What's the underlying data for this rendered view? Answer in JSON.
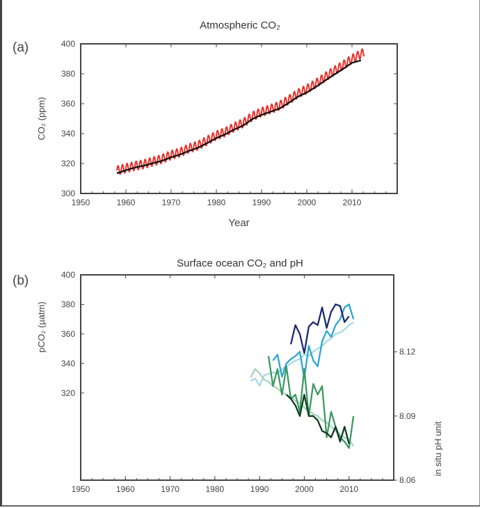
{
  "chart_data": [
    {
      "type": "line",
      "panel_label": "(a)",
      "title": "Atmospheric CO₂",
      "xlabel": "Year",
      "ylabel": "CO₂ (ppm)",
      "xlim": [
        1950,
        2020
      ],
      "ylim": [
        300,
        400
      ],
      "xticks": [
        1950,
        1960,
        1970,
        1980,
        1990,
        2000,
        2010
      ],
      "yticks": [
        300,
        320,
        340,
        360,
        380,
        400
      ],
      "grid": false,
      "series": [
        {
          "color": "#e8302a",
          "seasonal_amplitude": 3,
          "x": [
            1958,
            1960,
            1962,
            1964,
            1966,
            1968,
            1970,
            1972,
            1974,
            1976,
            1978,
            1980,
            1982,
            1984,
            1986,
            1988,
            1990,
            1992,
            1994,
            1996,
            1998,
            2000,
            2002,
            2004,
            2006,
            2008,
            2010,
            2012.8
          ],
          "y": [
            315.3,
            316.9,
            318.4,
            319.6,
            321.4,
            323.1,
            325.7,
            327.5,
            330.2,
            332.1,
            335.4,
            338.8,
            341.1,
            344.4,
            347.2,
            351.6,
            354.4,
            356.4,
            358.8,
            362.6,
            366.7,
            369.7,
            373.5,
            377.7,
            381.9,
            385.6,
            389.9,
            394.5
          ]
        },
        {
          "color": "#111111",
          "x": [
            1958,
            1960,
            1962,
            1964,
            1966,
            1968,
            1970,
            1972,
            1974,
            1976,
            1978,
            1980,
            1982,
            1984,
            1986,
            1988,
            1990,
            1992,
            1994,
            1996,
            1998,
            2000,
            2002,
            2004,
            2006,
            2008,
            2010,
            2012
          ],
          "y": [
            313.5,
            315.5,
            317.3,
            318.6,
            320.3,
            321.8,
            324.2,
            326.0,
            328.5,
            330.6,
            333.7,
            337.0,
            339.6,
            342.8,
            345.5,
            349.8,
            352.5,
            354.6,
            356.8,
            360.5,
            364.6,
            367.5,
            371.2,
            375.3,
            379.3,
            383.2,
            387.3,
            389.0
          ]
        }
      ]
    },
    {
      "type": "line",
      "panel_label": "(b)",
      "title": "Surface ocean CO₂ and pH",
      "ylabel": "pCO₂ (µatm)",
      "ylabel_right": "in situ pH unit",
      "xlim": [
        1950,
        2020
      ],
      "ylim": [
        261,
        400
      ],
      "ylim_right": [
        8.06,
        8.156
      ],
      "xticks": [
        1950,
        1960,
        1970,
        1980,
        1990,
        2000,
        2010
      ],
      "yticks": [
        320,
        340,
        360,
        380,
        400
      ],
      "yticks_right": [
        "8.06",
        "8.09",
        "8.12"
      ],
      "grid": false,
      "series": [
        {
          "axis": "left",
          "color": "#a8d8e6",
          "x": [
            1988,
            1989,
            1990,
            1991,
            1992,
            1993,
            1994,
            1995,
            1996,
            1997,
            1998,
            1999,
            2000,
            2001,
            2002,
            2003,
            2004,
            2005,
            2006,
            2007,
            2008,
            2009,
            2010,
            2011
          ],
          "y": [
            328,
            330,
            325,
            332,
            333,
            334,
            333,
            336,
            338,
            340,
            342,
            343,
            346,
            345,
            348,
            350,
            352,
            355,
            357,
            360,
            361,
            363,
            366,
            368
          ]
        },
        {
          "axis": "left",
          "color": "#2ba6cf",
          "x": [
            1993,
            1994,
            1995,
            1996,
            1997,
            1998,
            1999,
            2000,
            2001,
            2002,
            2003,
            2004,
            2005,
            2006,
            2007,
            2008,
            2009,
            2010,
            2011
          ],
          "y": [
            342,
            346,
            331,
            340,
            343,
            345,
            348,
            330,
            352,
            342,
            338,
            355,
            362,
            358,
            366,
            370,
            378,
            380,
            370
          ]
        },
        {
          "axis": "left",
          "color": "#1d2a6e",
          "x": [
            1997,
            1998,
            1999,
            2000,
            2001,
            2002,
            2003,
            2004,
            2005,
            2006,
            2007,
            2008,
            2009,
            2010
          ],
          "y": [
            353,
            366,
            360,
            347,
            365,
            368,
            366,
            378,
            364,
            375,
            380,
            379,
            368,
            372
          ]
        },
        {
          "axis": "right",
          "color": "#a6d6b8",
          "x": [
            1988,
            1989,
            1990,
            1991,
            1992,
            1993,
            1994,
            1995,
            1996,
            1997,
            1998,
            1999,
            2000,
            2001,
            2002,
            2003,
            2004,
            2005,
            2006,
            2007,
            2008,
            2009,
            2010,
            2011
          ],
          "y": [
            8.108,
            8.112,
            8.11,
            8.107,
            8.106,
            8.104,
            8.103,
            8.101,
            8.1,
            8.099,
            8.097,
            8.096,
            8.094,
            8.092,
            8.091,
            8.09,
            8.088,
            8.087,
            8.085,
            8.083,
            8.081,
            8.08,
            8.079,
            8.076
          ]
        },
        {
          "axis": "right",
          "color": "#3a9a5e",
          "x": [
            1992,
            1993,
            1994,
            1995,
            1996,
            1997,
            1998,
            1999,
            2000,
            2001,
            2002,
            2003,
            2004,
            2005,
            2006,
            2007,
            2008,
            2009,
            2010,
            2011
          ],
          "y": [
            8.118,
            8.104,
            8.112,
            8.1,
            8.113,
            8.098,
            8.1,
            8.092,
            8.112,
            8.09,
            8.105,
            8.1,
            8.104,
            8.08,
            8.092,
            8.085,
            8.08,
            8.078,
            8.075,
            8.09
          ]
        },
        {
          "axis": "right",
          "color": "#123a24",
          "x": [
            1996,
            1997,
            1998,
            1999,
            2000,
            2001,
            2002,
            2003,
            2004,
            2005,
            2006,
            2007,
            2008,
            2009,
            2010
          ],
          "y": [
            8.1,
            8.098,
            8.095,
            8.09,
            8.1,
            8.09,
            8.09,
            8.088,
            8.083,
            8.082,
            8.08,
            8.085,
            8.078,
            8.085,
            8.077
          ]
        }
      ]
    }
  ]
}
